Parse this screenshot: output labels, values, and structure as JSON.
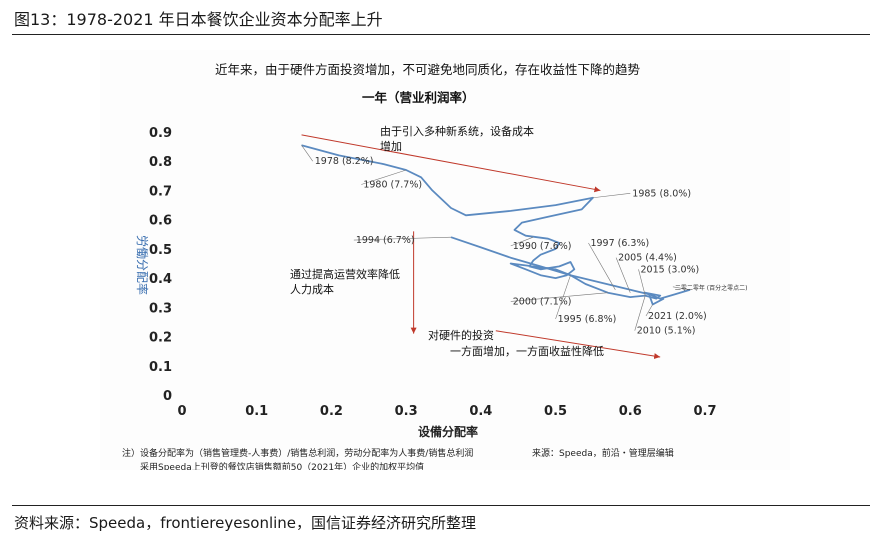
{
  "figure": {
    "title": "图13：1978-2021 年日本餐饮企业资本分配率上升",
    "source": "资料来源：Speeda，frontiereyesonline，国信证券经济研究所整理"
  },
  "chart_data": {
    "type": "line",
    "title": "近年来，由于硬件方面投资增加，不可避免地同质化，存在收益性下降的趋势",
    "subtitle": "一年（营业利润率）",
    "xlabel": "设備分配率",
    "ylabel": "労働分配率",
    "xlim": [
      0,
      0.7
    ],
    "ylim": [
      0,
      0.9
    ],
    "xticks": [
      "0",
      "0.1",
      "0.2",
      "0.3",
      "0.4",
      "0.5",
      "0.6",
      "0.7"
    ],
    "yticks": [
      "0",
      "0.1",
      "0.2",
      "0.3",
      "0.4",
      "0.5",
      "0.6",
      "0.7",
      "0.8",
      "0.9"
    ],
    "grid": false,
    "line_color": "#5b8ac0",
    "series": [
      {
        "points": [
          [
            0.16,
            0.855
          ],
          [
            0.21,
            0.82
          ],
          [
            0.27,
            0.79
          ],
          [
            0.3,
            0.77
          ],
          [
            0.32,
            0.745
          ],
          [
            0.335,
            0.7
          ],
          [
            0.36,
            0.64
          ],
          [
            0.38,
            0.615
          ],
          [
            0.44,
            0.63
          ],
          [
            0.5,
            0.65
          ],
          [
            0.55,
            0.675
          ],
          [
            0.535,
            0.635
          ],
          [
            0.49,
            0.61
          ],
          [
            0.455,
            0.59
          ],
          [
            0.445,
            0.565
          ],
          [
            0.46,
            0.545
          ],
          [
            0.49,
            0.535
          ],
          [
            0.505,
            0.52
          ],
          [
            0.5,
            0.5
          ],
          [
            0.48,
            0.48
          ],
          [
            0.47,
            0.46
          ],
          [
            0.465,
            0.44
          ],
          [
            0.48,
            0.43
          ],
          [
            0.505,
            0.44
          ],
          [
            0.52,
            0.455
          ],
          [
            0.525,
            0.43
          ],
          [
            0.515,
            0.41
          ],
          [
            0.5,
            0.4
          ],
          [
            0.48,
            0.41
          ],
          [
            0.46,
            0.43
          ],
          [
            0.44,
            0.45
          ],
          [
            0.47,
            0.44
          ],
          [
            0.5,
            0.43
          ],
          [
            0.52,
            0.41
          ],
          [
            0.54,
            0.38
          ],
          [
            0.57,
            0.35
          ],
          [
            0.6,
            0.335
          ],
          [
            0.62,
            0.34
          ],
          [
            0.635,
            0.33
          ],
          [
            0.64,
            0.34
          ],
          [
            0.62,
            0.35
          ],
          [
            0.64,
            0.33
          ],
          [
            0.66,
            0.345
          ],
          [
            0.68,
            0.36
          ]
        ]
      },
      {
        "points": [
          [
            0.36,
            0.54
          ],
          [
            0.4,
            0.505
          ],
          [
            0.44,
            0.47
          ],
          [
            0.48,
            0.44
          ],
          [
            0.52,
            0.41
          ],
          [
            0.56,
            0.385
          ],
          [
            0.6,
            0.36
          ],
          [
            0.625,
            0.345
          ],
          [
            0.63,
            0.31
          ],
          [
            0.645,
            0.33
          ]
        ]
      }
    ],
    "point_labels": [
      {
        "text": "1978 (8.2%)",
        "x": 0.16,
        "y": 0.855
      },
      {
        "text": "1980 (7.7%)",
        "x": 0.3,
        "y": 0.77
      },
      {
        "text": "1985 (8.0%)",
        "x": 0.55,
        "y": 0.675
      },
      {
        "text": "1990 (7.6%)",
        "x": 0.47,
        "y": 0.54
      },
      {
        "text": "1994 (6.7%)",
        "x": 0.36,
        "y": 0.54
      },
      {
        "text": "1997 (6.3%)",
        "x": 0.58,
        "y": 0.36
      },
      {
        "text": "2005 (4.4%)",
        "x": 0.6,
        "y": 0.35
      },
      {
        "text": "2015 (3.0%)",
        "x": 0.62,
        "y": 0.34
      },
      {
        "text": "2000 (7.1%)",
        "x": 0.57,
        "y": 0.35
      },
      {
        "text": "1995 (6.8%)",
        "x": 0.52,
        "y": 0.41
      },
      {
        "text": "2021 (2.0%)",
        "x": 0.63,
        "y": 0.31
      },
      {
        "text": "2010 (5.1%)",
        "x": 0.62,
        "y": 0.34
      },
      {
        "text": "二零二零年 (百分之零点二)",
        "x": 0.68,
        "y": 0.36
      }
    ],
    "annotations": {
      "increase_line1": "由于引入多种新系统，设备成本",
      "increase_line2": "增加",
      "labor_line1": "通过提高运营效率降低",
      "labor_line2": "人力成本",
      "hardware_line1": "对硬件的投资",
      "hardware_line2": "一方面增加，一方面收益性降低"
    },
    "notes": {
      "line1": "注）设备分配率为（销售管理费-人事费）/销售总利润，劳动分配率为人事费/销售总利润",
      "line2": "采用Speeda上刊登的餐饮店销售额前50（2021年）企业的加权平均值",
      "source": "来源：Speeda，前沿・管理层编辑"
    }
  }
}
